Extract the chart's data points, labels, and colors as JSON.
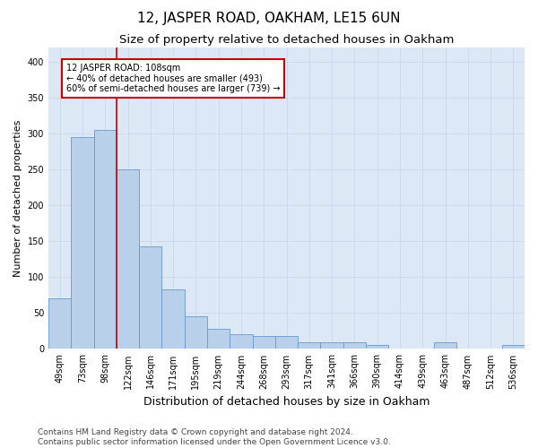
{
  "title": "12, JASPER ROAD, OAKHAM, LE15 6UN",
  "subtitle": "Size of property relative to detached houses in Oakham",
  "xlabel": "Distribution of detached houses by size in Oakham",
  "ylabel": "Number of detached properties",
  "bar_labels": [
    "49sqm",
    "73sqm",
    "98sqm",
    "122sqm",
    "146sqm",
    "171sqm",
    "195sqm",
    "219sqm",
    "244sqm",
    "268sqm",
    "293sqm",
    "317sqm",
    "341sqm",
    "366sqm",
    "390sqm",
    "414sqm",
    "439sqm",
    "463sqm",
    "487sqm",
    "512sqm",
    "536sqm"
  ],
  "bar_heights": [
    70,
    295,
    305,
    250,
    143,
    83,
    45,
    28,
    21,
    18,
    18,
    9,
    9,
    9,
    5,
    0,
    0,
    9,
    0,
    0,
    5
  ],
  "bar_color": "#b8d0ea",
  "bar_edge_color": "#6699cc",
  "property_line_x": 2.5,
  "annotation_text": "12 JASPER ROAD: 108sqm\n← 40% of detached houses are smaller (493)\n60% of semi-detached houses are larger (739) →",
  "annotation_box_color": "#ffffff",
  "annotation_box_edge_color": "#cc0000",
  "property_line_color": "#cc0000",
  "ylim": [
    0,
    420
  ],
  "yticks": [
    0,
    50,
    100,
    150,
    200,
    250,
    300,
    350,
    400
  ],
  "grid_color": "#c8d8ec",
  "background_color": "#dce8f5",
  "footer_text": "Contains HM Land Registry data © Crown copyright and database right 2024.\nContains public sector information licensed under the Open Government Licence v3.0.",
  "title_fontsize": 11,
  "subtitle_fontsize": 9.5,
  "xlabel_fontsize": 9,
  "ylabel_fontsize": 8,
  "tick_fontsize": 7,
  "footer_fontsize": 6.5,
  "annotation_fontsize": 7
}
